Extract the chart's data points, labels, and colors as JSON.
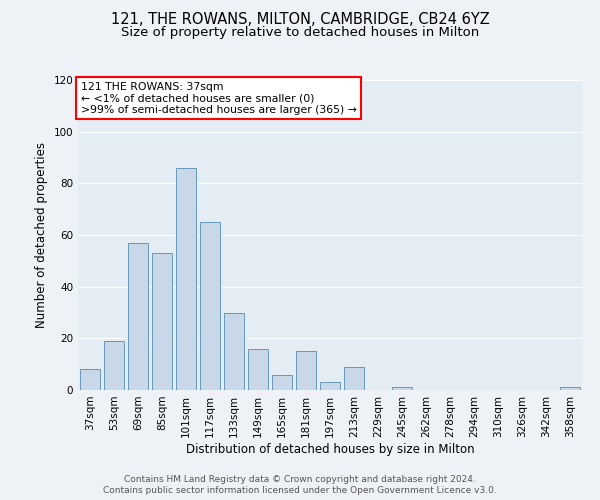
{
  "title": "121, THE ROWANS, MILTON, CAMBRIDGE, CB24 6YZ",
  "subtitle": "Size of property relative to detached houses in Milton",
  "xlabel": "Distribution of detached houses by size in Milton",
  "ylabel": "Number of detached properties",
  "bar_color": "#c8d8e8",
  "bar_edge_color": "#6699bb",
  "categories": [
    "37sqm",
    "53sqm",
    "69sqm",
    "85sqm",
    "101sqm",
    "117sqm",
    "133sqm",
    "149sqm",
    "165sqm",
    "181sqm",
    "197sqm",
    "213sqm",
    "229sqm",
    "245sqm",
    "262sqm",
    "278sqm",
    "294sqm",
    "310sqm",
    "326sqm",
    "342sqm",
    "358sqm"
  ],
  "values": [
    8,
    19,
    57,
    53,
    86,
    65,
    30,
    16,
    6,
    15,
    3,
    9,
    0,
    1,
    0,
    0,
    0,
    0,
    0,
    0,
    1
  ],
  "ylim": [
    0,
    120
  ],
  "yticks": [
    0,
    20,
    40,
    60,
    80,
    100,
    120
  ],
  "annotation_line1": "121 THE ROWANS: 37sqm",
  "annotation_line2": "← <1% of detached houses are smaller (0)",
  "annotation_line3": ">99% of semi-detached houses are larger (365) →",
  "footer_line1": "Contains HM Land Registry data © Crown copyright and database right 2024.",
  "footer_line2": "Contains public sector information licensed under the Open Government Licence v3.0.",
  "bg_color": "#eef2f7",
  "plot_bg_color": "#e4ecf4",
  "grid_color": "#ffffff",
  "title_fontsize": 10.5,
  "subtitle_fontsize": 9.5,
  "label_fontsize": 8.5,
  "tick_fontsize": 7.5,
  "footer_fontsize": 6.5
}
